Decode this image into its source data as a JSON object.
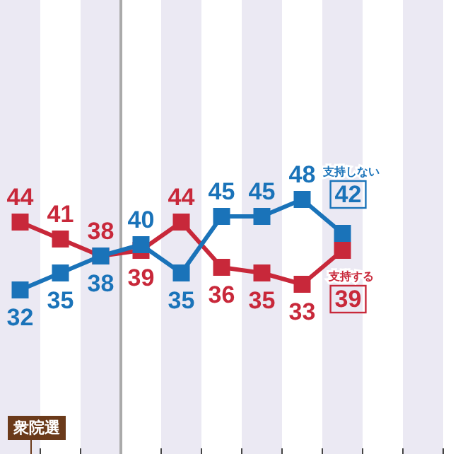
{
  "chart_data": {
    "type": "line",
    "categories": [
      null,
      null,
      null,
      null,
      null,
      null,
      null,
      null,
      null,
      null,
      null
    ],
    "series": [
      {
        "name": "支持する",
        "color": "#c8283a",
        "values": [
          44,
          41,
          38,
          39,
          44,
          36,
          35,
          33,
          39,
          null,
          null
        ]
      },
      {
        "name": "支持しない",
        "color": "#1a73b9",
        "values": [
          32,
          35,
          38,
          40,
          35,
          45,
          45,
          48,
          42,
          null,
          null
        ]
      }
    ],
    "data_labels": true,
    "marker": "square",
    "grid": "x",
    "annotations": [
      "衆院選"
    ]
  }
}
